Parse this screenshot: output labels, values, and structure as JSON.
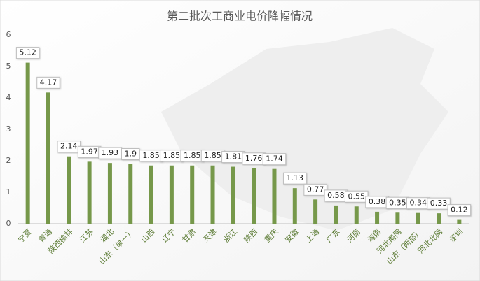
{
  "chart_data": {
    "type": "bar",
    "title": "第二批次工商业电价降幅情况",
    "categories": [
      "宁夏",
      "青海",
      "陕西榆林",
      "江苏",
      "湖北",
      "山东（单一）",
      "山西",
      "辽宁",
      "甘肃",
      "天津",
      "浙江",
      "陕西",
      "重庆",
      "安徽",
      "上海",
      "广东",
      "河南",
      "海南",
      "河北南网",
      "山东（两部）",
      "河北北网",
      "深圳"
    ],
    "values": [
      5.12,
      4.17,
      2.14,
      1.97,
      1.93,
      1.9,
      1.85,
      1.85,
      1.85,
      1.85,
      1.81,
      1.76,
      1.74,
      1.13,
      0.77,
      0.58,
      0.55,
      0.38,
      0.35,
      0.34,
      0.33,
      0.12
    ],
    "color": "#76984a",
    "ylim": [
      0,
      6
    ],
    "yticks": [
      0,
      1,
      2,
      3,
      4,
      5,
      6
    ],
    "grid": false
  }
}
